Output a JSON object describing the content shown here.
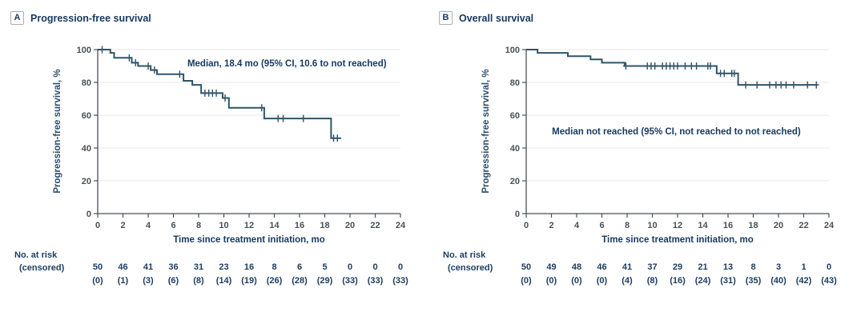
{
  "figure": {
    "background": "#ffffff",
    "colors": {
      "curve": "#2e5468",
      "navy_text": "#16395f",
      "tick_text": "#4a5055",
      "grid": "#ececec",
      "axis": "#4a4f54",
      "tag_border": "#a8aeb4",
      "at_risk_text": "#1b3c5f"
    },
    "xlabel": "Time since treatment initiation, mo",
    "ylabel": "Progression-free survival, %",
    "at_risk_label": "No. at risk",
    "censored_label": "(censored)",
    "panels": [
      {
        "tag": "A",
        "title": "Progression-free survival",
        "annotation": "Median, 18.4 mo (95% CI, 10.6 to not reached)"
      },
      {
        "tag": "B",
        "title": "Overall survival",
        "annotation": "Median not reached (95% CI, not reached to not reached)"
      }
    ]
  },
  "chart_data": [
    {
      "type": "line",
      "subtype": "kaplan_meier_step",
      "panel": "A",
      "title": "Progression-free survival",
      "xlabel": "Time since treatment initiation, mo",
      "ylabel": "Progression-free survival, %",
      "xlim": [
        0,
        24
      ],
      "ylim": [
        0,
        100
      ],
      "x_ticks": [
        0,
        2,
        4,
        6,
        8,
        10,
        12,
        14,
        16,
        18,
        20,
        22,
        24
      ],
      "y_ticks": [
        0,
        20,
        40,
        60,
        80,
        100
      ],
      "grid": "horizontal",
      "median_text": "Median, 18.4 mo (95% CI, 10.6 to not reached)",
      "annotation_anchor": {
        "x": 15.0,
        "y": 91
      },
      "steps": [
        [
          0,
          100
        ],
        [
          1.0,
          98
        ],
        [
          1.3,
          95
        ],
        [
          2.7,
          92
        ],
        [
          3.2,
          90
        ],
        [
          4.2,
          87.5
        ],
        [
          4.7,
          85
        ],
        [
          6.8,
          81
        ],
        [
          7.5,
          78.5
        ],
        [
          8.2,
          73.5
        ],
        [
          9.9,
          70.5
        ],
        [
          10.4,
          64.5
        ],
        [
          13.2,
          58
        ],
        [
          18.5,
          46
        ]
      ],
      "end_time": 19.3,
      "censor_marks": [
        [
          0.35,
          100
        ],
        [
          2.5,
          95
        ],
        [
          3.0,
          92
        ],
        [
          4.0,
          90
        ],
        [
          4.5,
          87.5
        ],
        [
          6.5,
          85
        ],
        [
          8.5,
          73.5
        ],
        [
          8.8,
          73.5
        ],
        [
          9.1,
          73.5
        ],
        [
          9.4,
          73.5
        ],
        [
          10.1,
          70.5
        ],
        [
          13.0,
          64.5
        ],
        [
          14.3,
          58
        ],
        [
          14.7,
          58
        ],
        [
          16.3,
          58
        ],
        [
          18.7,
          46
        ],
        [
          19.0,
          46
        ]
      ],
      "at_risk_times": [
        0,
        2,
        4,
        6,
        8,
        10,
        12,
        14,
        16,
        18,
        20,
        22,
        24
      ],
      "at_risk": [
        50,
        46,
        41,
        36,
        31,
        23,
        16,
        8,
        6,
        5,
        0,
        0,
        0
      ],
      "censored_counts": [
        0,
        1,
        3,
        6,
        8,
        14,
        19,
        26,
        28,
        29,
        33,
        33,
        33
      ]
    },
    {
      "type": "line",
      "subtype": "kaplan_meier_step",
      "panel": "B",
      "title": "Overall survival",
      "xlabel": "Time since treatment initiation, mo",
      "ylabel": "Progression-free survival, %",
      "xlim": [
        0,
        24
      ],
      "ylim": [
        0,
        100
      ],
      "x_ticks": [
        0,
        2,
        4,
        6,
        8,
        10,
        12,
        14,
        16,
        18,
        20,
        22,
        24
      ],
      "y_ticks": [
        0,
        20,
        40,
        60,
        80,
        100
      ],
      "grid": "horizontal",
      "median_text": "Median not reached (95% CI, not reached to not reached)",
      "annotation_anchor": {
        "x": 11.9,
        "y": 50
      },
      "steps": [
        [
          0,
          100
        ],
        [
          0.9,
          98
        ],
        [
          3.3,
          96
        ],
        [
          5.1,
          94
        ],
        [
          6.0,
          92
        ],
        [
          7.8,
          90
        ],
        [
          15.1,
          85.5
        ],
        [
          16.8,
          78.5
        ]
      ],
      "end_time": 23.1,
      "censor_marks": [
        [
          7.9,
          90
        ],
        [
          9.6,
          90
        ],
        [
          9.9,
          90
        ],
        [
          10.2,
          90
        ],
        [
          10.8,
          90
        ],
        [
          11.1,
          90
        ],
        [
          11.4,
          90
        ],
        [
          11.7,
          90
        ],
        [
          12.0,
          90
        ],
        [
          12.6,
          90
        ],
        [
          13.1,
          90
        ],
        [
          13.5,
          90
        ],
        [
          14.4,
          90
        ],
        [
          14.6,
          90
        ],
        [
          15.4,
          85.5
        ],
        [
          15.7,
          85.5
        ],
        [
          16.3,
          85.5
        ],
        [
          16.5,
          85.5
        ],
        [
          17.4,
          78.5
        ],
        [
          18.3,
          78.5
        ],
        [
          19.3,
          78.5
        ],
        [
          19.8,
          78.5
        ],
        [
          20.2,
          78.5
        ],
        [
          20.6,
          78.5
        ],
        [
          21.2,
          78.5
        ],
        [
          22.3,
          78.5
        ],
        [
          23.0,
          78.5
        ]
      ],
      "at_risk_times": [
        0,
        2,
        4,
        6,
        8,
        10,
        12,
        14,
        16,
        18,
        20,
        22,
        24
      ],
      "at_risk": [
        50,
        49,
        48,
        46,
        41,
        37,
        29,
        21,
        13,
        8,
        3,
        1,
        0
      ],
      "censored_counts": [
        0,
        0,
        0,
        0,
        4,
        8,
        16,
        24,
        31,
        35,
        40,
        42,
        43
      ]
    }
  ]
}
